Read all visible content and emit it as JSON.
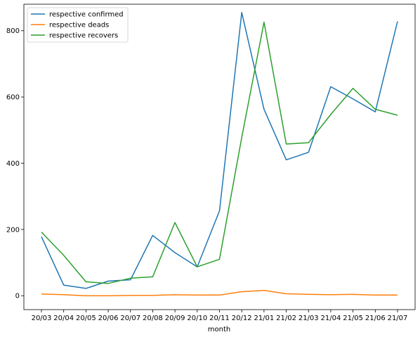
{
  "chart_data": {
    "type": "line",
    "xlabel": "month",
    "ylabel": "",
    "categories": [
      "20/03",
      "20/04",
      "20/05",
      "20/06",
      "20/07",
      "20/08",
      "20/09",
      "20/10",
      "20/11",
      "20/12",
      "21/01",
      "21/02",
      "21/03",
      "21/04",
      "21/05",
      "21/06",
      "21/07"
    ],
    "ylim": [
      -42,
      880
    ],
    "yticks": [
      0,
      200,
      400,
      600,
      800
    ],
    "grid": false,
    "legend_position": "top-left",
    "series": [
      {
        "name": "respective confirmed",
        "color": "#1f77b4",
        "values": [
          178,
          32,
          22,
          44,
          48,
          182,
          130,
          87,
          256,
          855,
          563,
          410,
          433,
          631,
          594,
          555,
          828
        ]
      },
      {
        "name": "respective deads",
        "color": "#ff7f0e",
        "values": [
          5,
          3,
          0,
          0,
          1,
          1,
          3,
          2,
          2,
          12,
          16,
          6,
          4,
          3,
          4,
          2,
          2
        ]
      },
      {
        "name": "respective recovers",
        "color": "#2ca02c",
        "values": [
          192,
          122,
          42,
          37,
          53,
          57,
          221,
          87,
          110,
          478,
          826,
          458,
          462,
          547,
          626,
          563,
          545
        ]
      }
    ]
  }
}
